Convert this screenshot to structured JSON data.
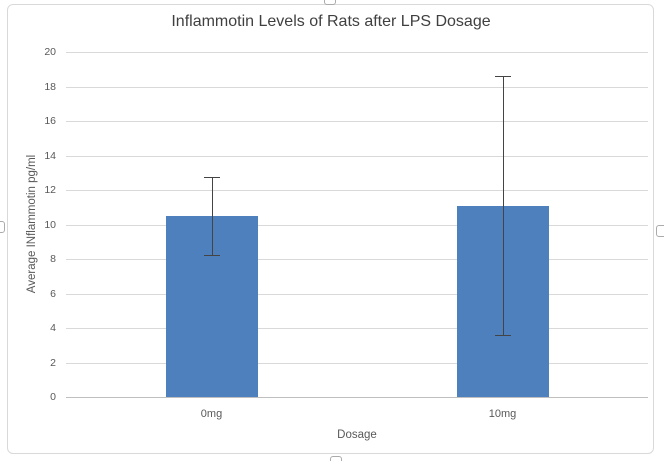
{
  "chart_data": {
    "type": "bar",
    "title": "Inflammotin Levels of Rats after LPS Dosage",
    "xlabel": "Dosage",
    "ylabel": "Average INflammotin pg/ml",
    "categories": [
      "0mg",
      "10mg"
    ],
    "values": [
      10.5,
      11.1
    ],
    "error_bars": [
      2.25,
      7.5
    ],
    "ylim": [
      0,
      20
    ],
    "yticks": [
      0,
      2,
      4,
      6,
      8,
      10,
      12,
      14,
      16,
      18,
      20
    ],
    "grid": true,
    "legend": "none"
  },
  "colors": {
    "bar_fill": "#4E80BD",
    "error_bar": "#444444",
    "gridline": "#D9D9D9",
    "axis_line": "#BFBFBF",
    "chart_border": "#D9D9D9",
    "title_text": "#404040",
    "axis_text": "#595959",
    "handle_border": "#ABABAB",
    "background": "#FFFFFF"
  }
}
